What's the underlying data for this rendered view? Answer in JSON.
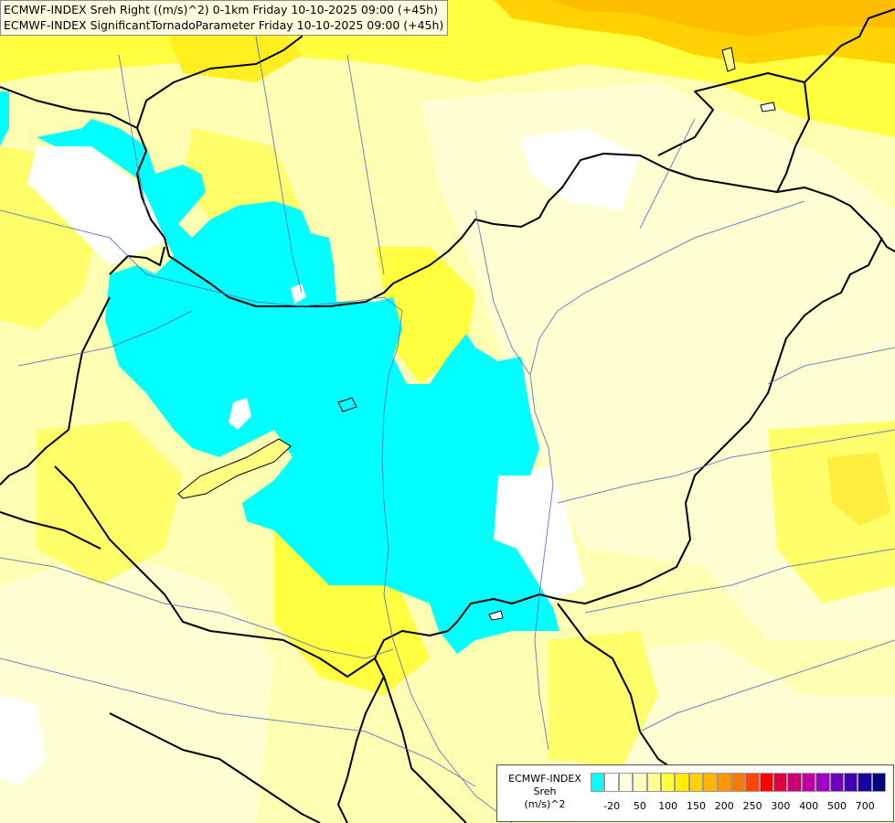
{
  "title": {
    "line1": "ECMWF-INDEX Sreh Right ((m/s)^2) 0-1km Friday 10-10-2025 09:00 (+45h)",
    "line2": "ECMWF-INDEX SignificantTornadoParameter Friday 10-10-2025 09:00 (+45h)"
  },
  "legend": {
    "line1": "ECMWF-INDEX",
    "line2": "Sreh",
    "line3": "(m/s)^2",
    "colors": [
      "#00ffff",
      "#ffffff",
      "#ffffe0",
      "#ffffc0",
      "#ffff90",
      "#ffff40",
      "#ffee00",
      "#ffd200",
      "#ffb400",
      "#ff9600",
      "#ff7800",
      "#ff4600",
      "#ff0000",
      "#e00040",
      "#cc0070",
      "#c000a0",
      "#a000c0",
      "#7000c0",
      "#4000b0",
      "#1800a0",
      "#000080"
    ],
    "ticks": [
      {
        "label": "-20",
        "index": 1
      },
      {
        "label": "50",
        "index": 3
      },
      {
        "label": "100",
        "index": 5
      },
      {
        "label": "150",
        "index": 7
      },
      {
        "label": "200",
        "index": 9
      },
      {
        "label": "250",
        "index": 11
      },
      {
        "label": "300",
        "index": 13
      },
      {
        "label": "400",
        "index": 15
      },
      {
        "label": "500",
        "index": 17
      },
      {
        "label": "700",
        "index": 19
      }
    ]
  },
  "colors": {
    "cyan": "#00ffff",
    "pale_yellow": "#ffffc8",
    "light_yellow": "#ffff9a",
    "yellow": "#ffff40",
    "gold": "#ffd900",
    "orange": "#ffbd00",
    "border": "#000000",
    "river": "#5470c0"
  }
}
